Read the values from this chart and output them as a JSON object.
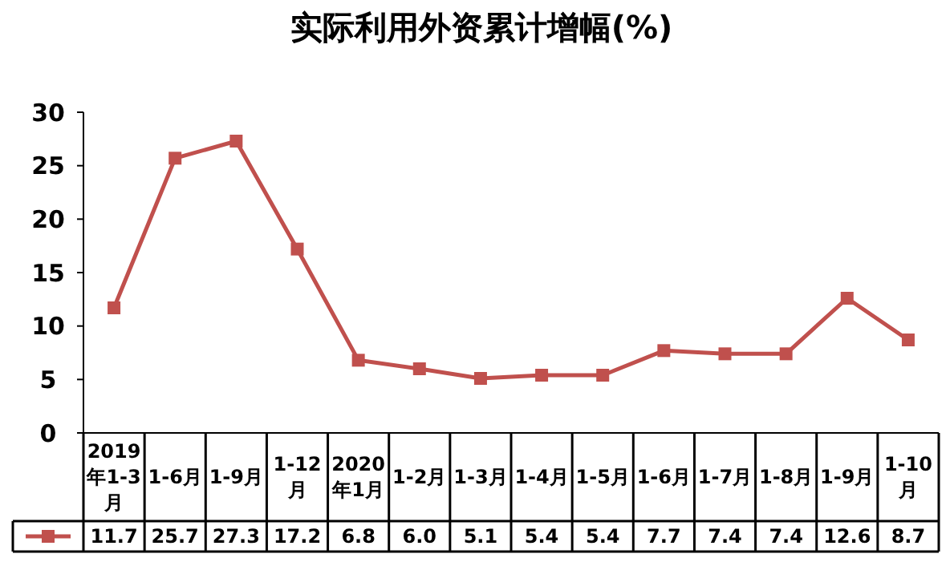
{
  "chart_data": {
    "type": "line",
    "title": "实际利用外资累计增幅(%)",
    "categories": [
      "2019年1-3月",
      "1-6月",
      "1-9月",
      "1-12月",
      "2020年1月",
      "1-2月",
      "1-3月",
      "1-4月",
      "1-5月",
      "1-6月",
      "1-7月",
      "1-8月",
      "1-9月",
      "1-10月"
    ],
    "series": [
      {
        "color": "#c0504d",
        "values": [
          11.7,
          25.7,
          27.3,
          17.2,
          6.8,
          6.0,
          5.1,
          5.4,
          5.4,
          7.7,
          7.4,
          7.4,
          12.6,
          8.7
        ]
      }
    ],
    "ylim": [
      0,
      30
    ],
    "yticks": [
      0,
      5,
      10,
      15,
      20,
      25,
      30
    ],
    "marker": "square",
    "grid": false,
    "value_labels": [
      "11.7",
      "25.7",
      "27.3",
      "17.2",
      "6.8",
      "6.0",
      "5.1",
      "5.4",
      "5.4",
      "7.7",
      "7.4",
      "7.4",
      "12.6",
      "8.7"
    ]
  }
}
